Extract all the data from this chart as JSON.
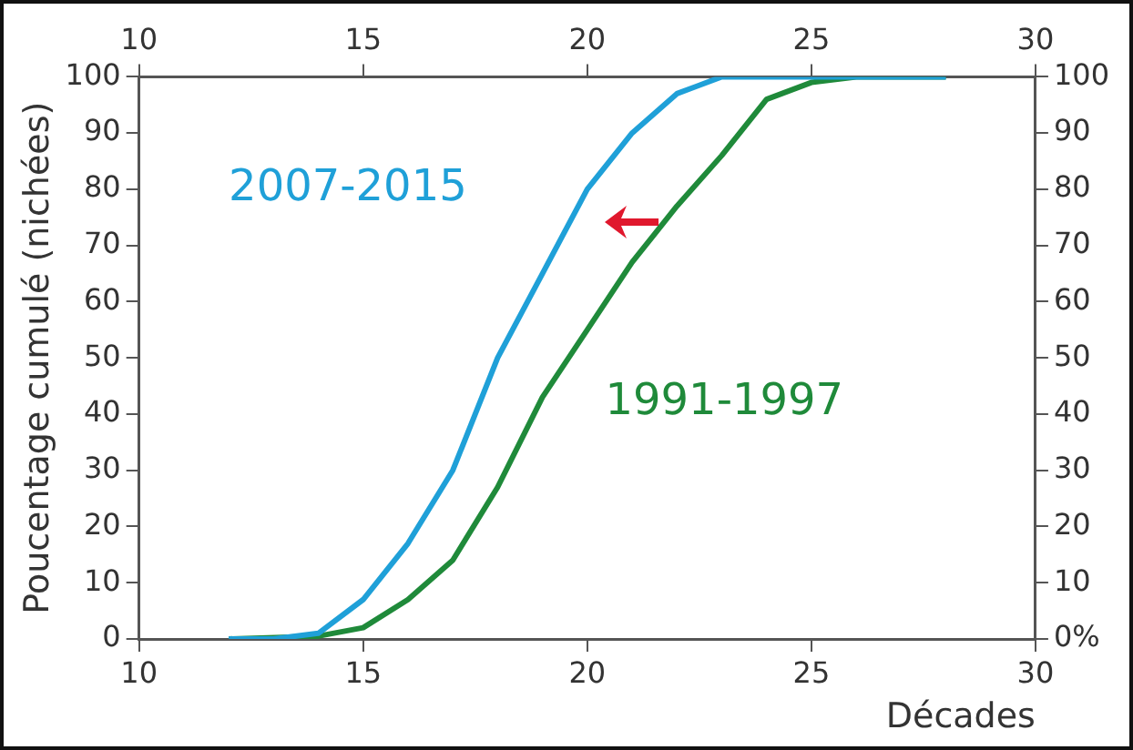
{
  "chart_data": {
    "type": "line",
    "xlabel": "Décades",
    "ylabel": "Poucentage cumulé (nichées)",
    "xlim": [
      10,
      30
    ],
    "xticks": [
      10,
      15,
      20,
      25,
      30
    ],
    "x2lim": [
      10,
      30
    ],
    "x2ticks": [
      10,
      15,
      20,
      25,
      30
    ],
    "ylim": [
      0,
      100
    ],
    "yticks": [
      0,
      10,
      20,
      30,
      40,
      50,
      60,
      70,
      80,
      90,
      100
    ],
    "y2lim": [
      0,
      100
    ],
    "y2ticks": [
      {
        "value": 0,
        "label": "0%"
      },
      10,
      20,
      30,
      40,
      50,
      60,
      70,
      80,
      90,
      100
    ],
    "grid": false,
    "legend": false,
    "marker": "none",
    "line_style": "solid",
    "series": [
      {
        "name": "2007-2015",
        "color": "#1fa0d8",
        "x": [
          12,
          13,
          14,
          15,
          16,
          17,
          18,
          19,
          20,
          21,
          22,
          23,
          28
        ],
        "values": [
          0,
          0,
          1,
          7,
          17,
          30,
          50,
          65,
          80,
          90,
          97,
          100,
          100
        ]
      },
      {
        "name": "1991-1997",
        "color": "#1f8a3a",
        "x": [
          12,
          14,
          15,
          16,
          17,
          18,
          19,
          20,
          21,
          22,
          23,
          24,
          25,
          26,
          28
        ],
        "values": [
          0,
          0.5,
          2,
          7,
          14,
          27,
          43,
          55,
          67,
          77,
          86,
          96,
          99,
          100,
          100
        ]
      }
    ]
  }
}
